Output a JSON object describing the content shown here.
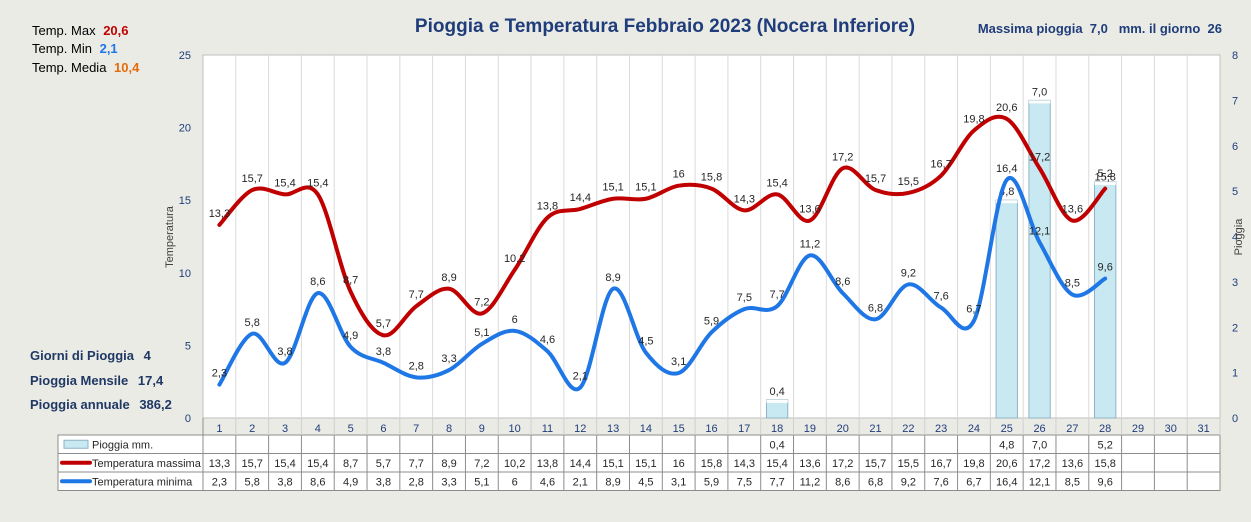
{
  "stats_top": {
    "max_label": "Temp. Max",
    "max_value": "20,6",
    "min_label": "Temp.  Min",
    "min_value": "2,1",
    "avg_label": "Temp. Media",
    "avg_value": "10,4"
  },
  "stats_bottom": {
    "rain_days_label": "Giorni di Pioggia",
    "rain_days_value": "4",
    "monthly_label": "Pioggia Mensile",
    "monthly_value": "17,4",
    "annual_label": "Pioggia annuale",
    "annual_value": "386,2"
  },
  "max_rain_text": "Massima pioggia  7,0   mm. il giorno  26",
  "colors": {
    "max": "#c00000",
    "min": "#1f77e6",
    "rain_fill": "#c8e8f2",
    "title": "#1f3d7a",
    "avg": "#e46c0a"
  },
  "chart_data": {
    "type": "line",
    "title": "Pioggia e Temperatura Febbraio 2023 (Nocera Inferiore)",
    "ylabel": "Temperatura",
    "y2label": "Pioggia",
    "ylim": [
      0,
      25
    ],
    "y_ticks": [
      0,
      5,
      10,
      15,
      20,
      25
    ],
    "y2lim": [
      0,
      8
    ],
    "y2_ticks": [
      0,
      1,
      2,
      3,
      4,
      5,
      6,
      7,
      8
    ],
    "categories": [
      "1",
      "2",
      "3",
      "4",
      "5",
      "6",
      "7",
      "8",
      "9",
      "10",
      "11",
      "12",
      "13",
      "14",
      "15",
      "16",
      "17",
      "18",
      "19",
      "20",
      "21",
      "22",
      "23",
      "24",
      "25",
      "26",
      "27",
      "28",
      "29",
      "30",
      "31"
    ],
    "series": [
      {
        "name": "Pioggia mm.",
        "type": "bar",
        "axis": "right",
        "values": [
          null,
          null,
          null,
          null,
          null,
          null,
          null,
          null,
          null,
          null,
          null,
          null,
          null,
          null,
          null,
          null,
          null,
          0.4,
          null,
          null,
          null,
          null,
          null,
          null,
          4.8,
          7.0,
          null,
          5.2,
          null,
          null,
          null
        ],
        "labels": [
          "",
          "",
          "",
          "",
          "",
          "",
          "",
          "",
          "",
          "",
          "",
          "",
          "",
          "",
          "",
          "",
          "",
          "0,4",
          "",
          "",
          "",
          "",
          "",
          "",
          "4,8",
          "7,0",
          "",
          "5,2",
          "",
          "",
          ""
        ]
      },
      {
        "name": "Temperatura massima",
        "type": "line",
        "axis": "left",
        "values": [
          13.3,
          15.7,
          15.4,
          15.4,
          8.7,
          5.7,
          7.7,
          8.9,
          7.2,
          10.2,
          13.8,
          14.4,
          15.1,
          15.1,
          16,
          15.8,
          14.3,
          15.4,
          13.6,
          17.2,
          15.7,
          15.5,
          16.7,
          19.8,
          20.6,
          17.2,
          13.6,
          15.8,
          null,
          null,
          null
        ],
        "labels": [
          "13,3",
          "15,7",
          "15,4",
          "15,4",
          "8,7",
          "5,7",
          "7,7",
          "8,9",
          "7,2",
          "10,2",
          "13,8",
          "14,4",
          "15,1",
          "15,1",
          "16",
          "15,8",
          "14,3",
          "15,4",
          "13,6",
          "17,2",
          "15,7",
          "15,5",
          "16,7",
          "19,8",
          "20,6",
          "17,2",
          "13,6",
          "15,8",
          "",
          "",
          ""
        ]
      },
      {
        "name": "Temperatura minima",
        "type": "line",
        "axis": "left",
        "values": [
          2.3,
          5.8,
          3.8,
          8.6,
          4.9,
          3.8,
          2.8,
          3.3,
          5.1,
          6,
          4.6,
          2.1,
          8.9,
          4.5,
          3.1,
          5.9,
          7.5,
          7.7,
          11.2,
          8.6,
          6.8,
          9.2,
          7.6,
          6.7,
          16.4,
          12.1,
          8.5,
          9.6,
          null,
          null,
          null
        ],
        "labels": [
          "2,3",
          "5,8",
          "3,8",
          "8,6",
          "4,9",
          "3,8",
          "2,8",
          "3,3",
          "5,1",
          "6",
          "4,6",
          "2,1",
          "8,9",
          "4,5",
          "3,1",
          "5,9",
          "7,5",
          "7,7",
          "11,2",
          "8,6",
          "6,8",
          "9,2",
          "7,6",
          "6,7",
          "16,4",
          "12,1",
          "8,5",
          "9,6",
          "",
          "",
          ""
        ]
      }
    ]
  }
}
